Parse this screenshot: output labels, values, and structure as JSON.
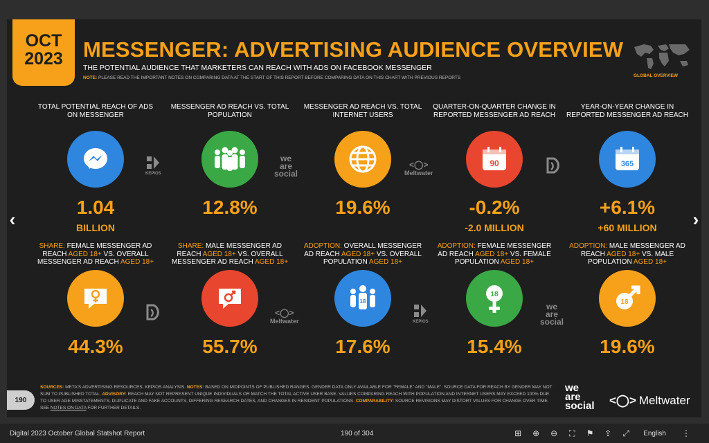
{
  "header": {
    "date_month": "OCT",
    "date_year": "2023",
    "title": "MESSENGER: ADVERTISING AUDIENCE OVERVIEW",
    "subtitle": "THE POTENTIAL AUDIENCE THAT MARKETERS CAN REACH WITH ADS ON FACEBOOK MESSENGER",
    "note_label": "NOTE:",
    "note_text": "PLEASE READ THE IMPORTANT NOTES ON COMPARING DATA AT THE START OF THIS REPORT BEFORE COMPARING DATA ON THIS CHART WITH PREVIOUS REPORTS",
    "global_label": "GLOBAL OVERVIEW"
  },
  "row1": [
    {
      "label": "TOTAL POTENTIAL REACH OF ADS ON MESSENGER",
      "value": "1.04",
      "sub": "BILLION",
      "color": "#2f86de",
      "icon": "messenger-icon"
    },
    {
      "label": "MESSENGER AD REACH vs. TOTAL POPULATION",
      "value": "12.8%",
      "sub": "",
      "color": "#3aa845",
      "icon": "people-icon"
    },
    {
      "label": "MESSENGER AD REACH vs. TOTAL INTERNET USERS",
      "value": "19.6%",
      "sub": "",
      "color": "#f7a11a",
      "icon": "globe-icon"
    },
    {
      "label": "QUARTER-ON-QUARTER CHANGE IN REPORTED MESSENGER AD REACH",
      "value": "-0.2%",
      "sub": "-2.0 MILLION",
      "color": "#e8462e",
      "icon": "calendar-90-icon",
      "icon_text": "90"
    },
    {
      "label": "YEAR-ON-YEAR CHANGE IN REPORTED MESSENGER AD REACH",
      "value": "+6.1%",
      "sub": "+60 MILLION",
      "color": "#2f86de",
      "icon": "calendar-365-icon",
      "icon_text": "365"
    }
  ],
  "row2": [
    {
      "label_a": "SHARE:",
      "label_b": " FEMALE MESSENGER AD REACH ",
      "label_c": "AGED 18+",
      "label_d": " vs. OVERALL MESSENGER AD REACH ",
      "label_e": "AGED 18+",
      "value": "44.3%",
      "color": "#f7a11a",
      "icon": "female-chat-icon"
    },
    {
      "label_a": "SHARE:",
      "label_b": " MALE MESSENGER AD REACH ",
      "label_c": "AGED 18+",
      "label_d": " vs. OVERALL MESSENGER AD REACH ",
      "label_e": "AGED 18+",
      "value": "55.7%",
      "color": "#e8462e",
      "icon": "male-chat-icon"
    },
    {
      "label_a": "ADOPTION:",
      "label_b": " OVERALL MESSENGER AD REACH ",
      "label_c": "AGED 18+",
      "label_d": " vs. OVERALL POPULATION ",
      "label_e": "AGED 18+",
      "value": "17.6%",
      "color": "#2f86de",
      "icon": "people-18-icon",
      "icon_text": "18"
    },
    {
      "label_a": "ADOPTION:",
      "label_b": " FEMALE MESSENGER AD REACH ",
      "label_c": "AGED 18+",
      "label_d": " vs. FEMALE POPULATION ",
      "label_e": "AGED 18+",
      "value": "15.4%",
      "color": "#3aa845",
      "icon": "female-18-icon",
      "icon_text": "18"
    },
    {
      "label_a": "ADOPTION:",
      "label_b": " MALE MESSENGER AD REACH ",
      "label_c": "AGED 18+",
      "label_d": " vs. MALE POPULATION ",
      "label_e": "AGED 18+",
      "value": "19.6%",
      "color": "#f7a11a",
      "icon": "male-18-icon",
      "icon_text": "18"
    }
  ],
  "logos": {
    "kepios": "KEPIOS",
    "we": "we",
    "are": "are",
    "social": "social",
    "meltwater": "Meltwater"
  },
  "footer": {
    "sources_label": "SOURCES:",
    "sources_text": " META'S ADVERTISING RESOURCES; KEPIOS ANALYSIS. ",
    "notes_label": "NOTES:",
    "notes_text": " BASED ON MIDPOINTS OF PUBLISHED RANGES. GENDER DATA ONLY AVAILABLE FOR \"FEMALE\" AND \"MALE\". SOURCE DATA FOR REACH BY GENDER MAY NOT SUM TO PUBLISHED TOTAL. ",
    "advisory_label": "ADVISORY:",
    "advisory_text": " REACH MAY NOT REPRESENT UNIQUE INDIVIDUALS OR MATCH THE TOTAL ACTIVE USER BASE. VALUES COMPARING REACH WITH POPULATION AND INTERNET USERS MAY EXCEED 100% DUE TO USER AGE MISSTATEMENTS, DUPLICATE AND FAKE ACCOUNTS, DIFFERING RESEARCH DATES, AND CHANGES IN RESIDENT POPULATIONS. ",
    "comparability_label": "COMPARABILITY:",
    "comparability_text": " SOURCE REVISIONS MAY DISTORT VALUES FOR CHANGE OVER TIME. SEE ",
    "link": "NOTES ON DATA",
    "end": " FOR FURTHER DETAILS.",
    "page_number": "190"
  },
  "viewer": {
    "doc_title": "Digital 2023 October Global Statshot Report",
    "page_count": "190 of 304",
    "language": "English",
    "prev": "‹",
    "next": "›"
  }
}
